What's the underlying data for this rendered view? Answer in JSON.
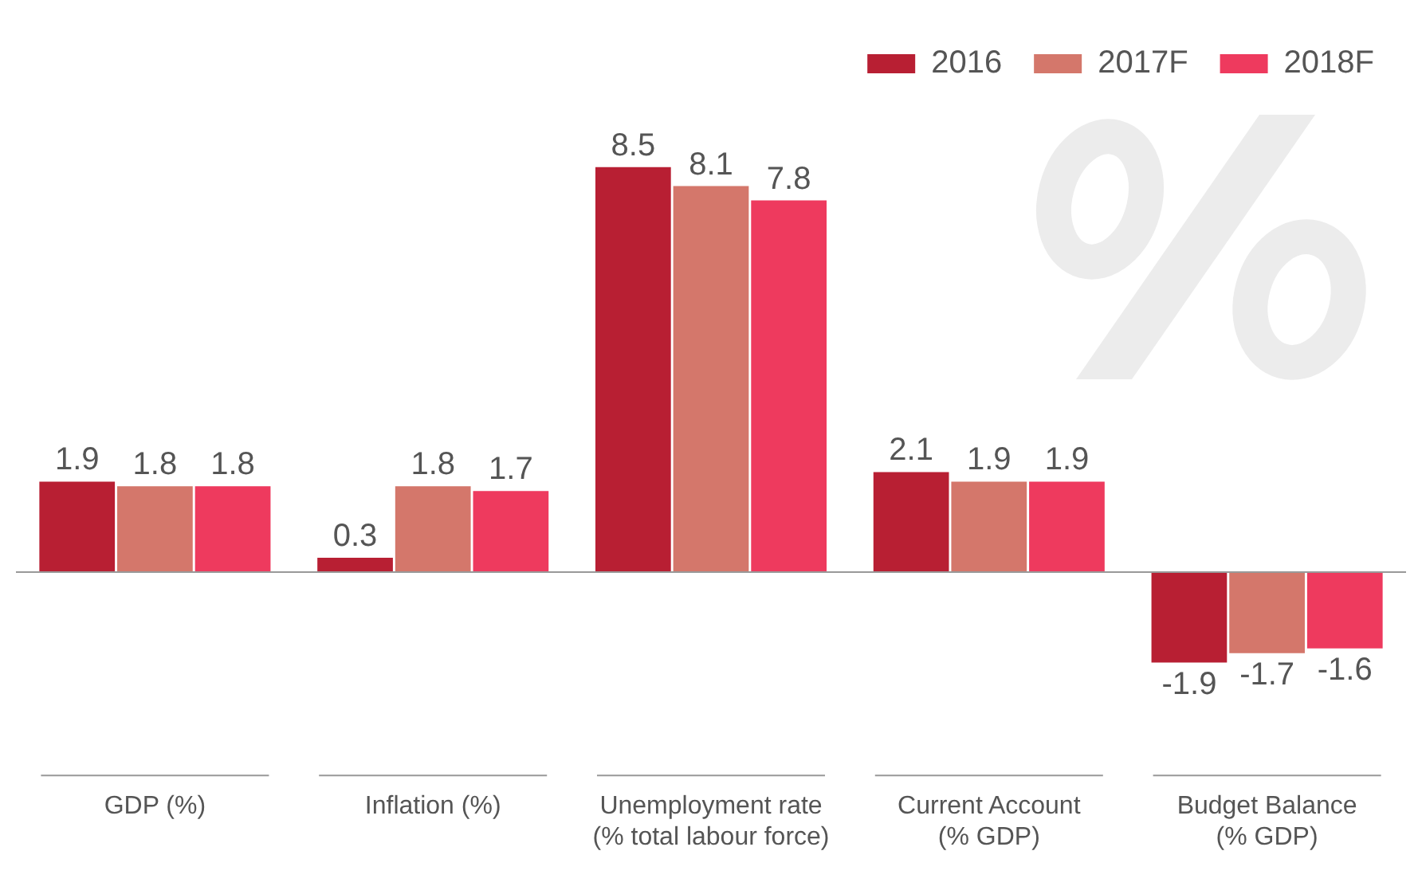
{
  "chart_data": {
    "type": "bar",
    "categories": [
      "GDP (%)",
      "Inflation (%)",
      "Unemployment rate\n(% total labour force)",
      "Current Account\n(% GDP)",
      "Budget Balance\n(% GDP)"
    ],
    "series": [
      {
        "name": "2016",
        "color": "#b81f33",
        "values": [
          1.9,
          0.3,
          8.5,
          2.1,
          -1.9
        ]
      },
      {
        "name": "2017F",
        "color": "#d4776b",
        "values": [
          1.8,
          1.8,
          8.1,
          1.9,
          -1.7
        ]
      },
      {
        "name": "2018F",
        "color": "#ee3a5e",
        "values": [
          1.8,
          1.7,
          7.8,
          1.9,
          -1.6
        ]
      }
    ],
    "data_labels": true,
    "legend": "top right",
    "grid": false
  }
}
